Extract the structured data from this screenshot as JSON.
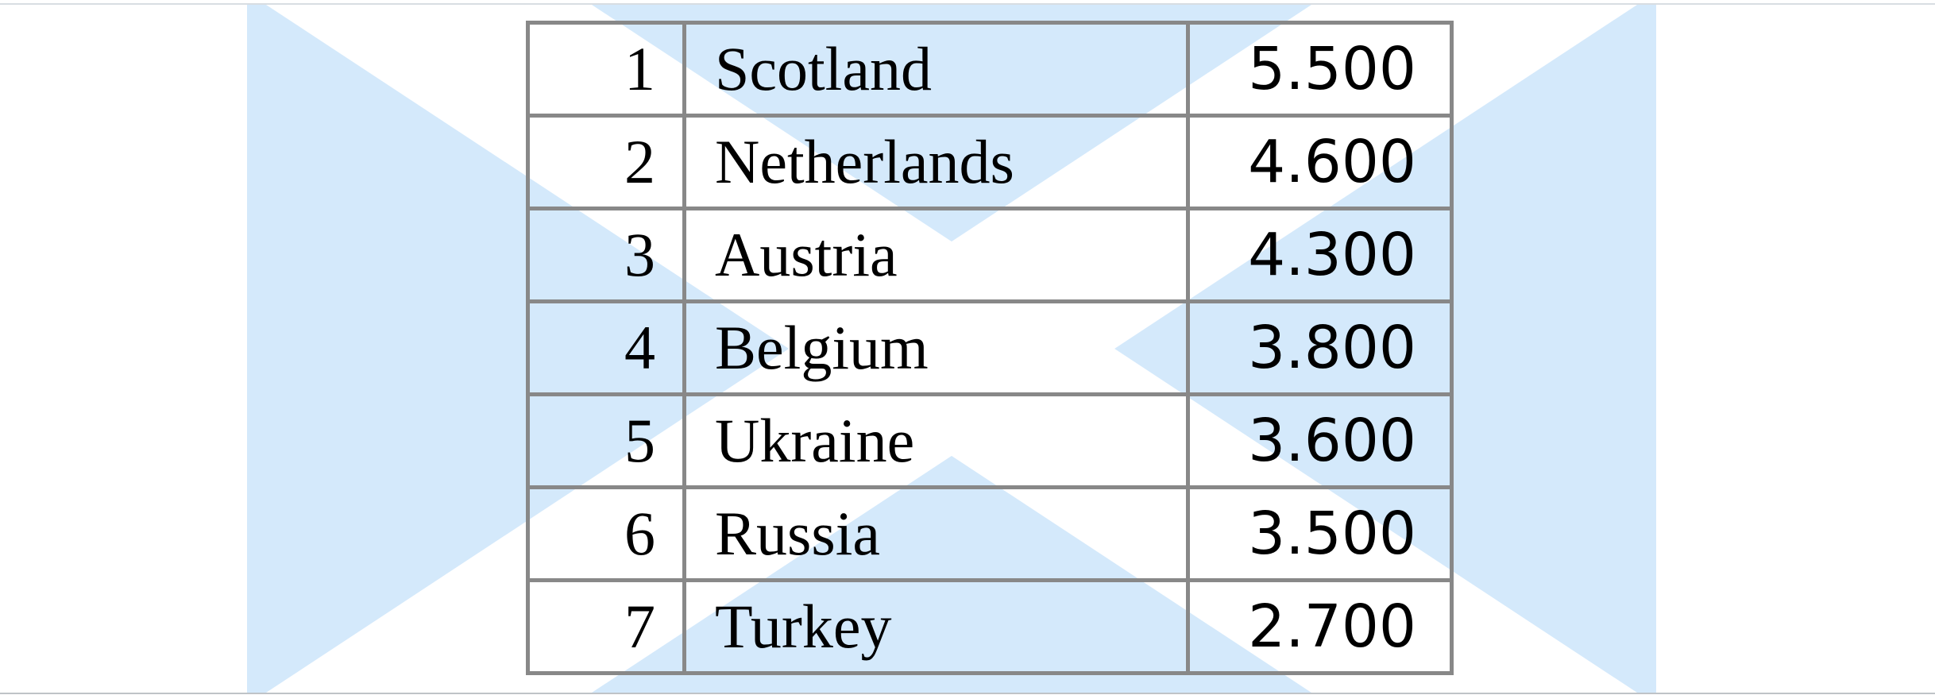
{
  "background": {
    "flag_icon": "saltire-flag-icon",
    "colors": {
      "field": "#d4e9fb",
      "cross": "#ffffff",
      "border": "#888888"
    }
  },
  "ranking": {
    "rows": [
      {
        "rank": "1",
        "country": "Scotland",
        "value": "5.500"
      },
      {
        "rank": "2",
        "country": "Netherlands",
        "value": "4.600"
      },
      {
        "rank": "3",
        "country": "Austria",
        "value": "4.300"
      },
      {
        "rank": "4",
        "country": "Belgium",
        "value": "3.800"
      },
      {
        "rank": "5",
        "country": "Ukraine",
        "value": "3.600"
      },
      {
        "rank": "6",
        "country": "Russia",
        "value": "3.500"
      },
      {
        "rank": "7",
        "country": "Turkey",
        "value": "2.700"
      }
    ]
  }
}
